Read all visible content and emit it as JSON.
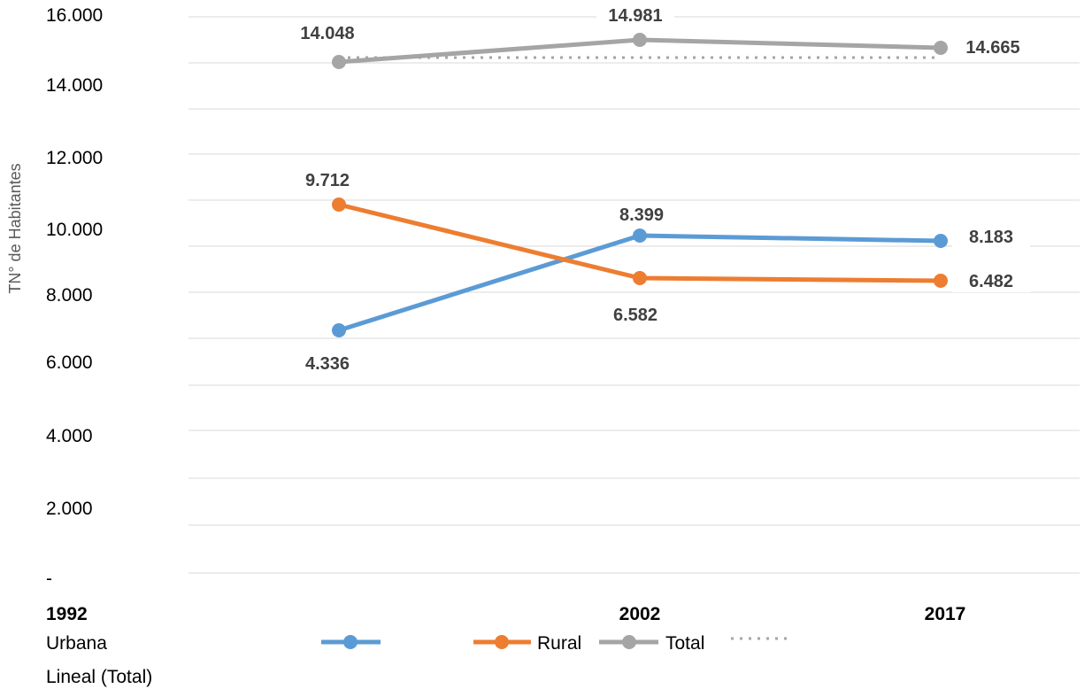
{
  "chart_data": {
    "type": "line",
    "ylabel": "TN° de Habitantes",
    "y_tick_labels": [
      "-",
      "2.000",
      "4.000",
      "6.000",
      "8.000",
      "10.000",
      "12.000",
      "14.000",
      "16.000"
    ],
    "categories": [
      "1992",
      "2002",
      "2017"
    ],
    "grid": true,
    "legend_position": "bottom",
    "series": [
      {
        "name": "Urbana",
        "values": [
          4336,
          8399,
          8183
        ],
        "labels": [
          "4.336",
          "8.399",
          "8.183"
        ],
        "color": "#5B9BD5"
      },
      {
        "name": "Rural",
        "values": [
          9712,
          6582,
          6482
        ],
        "labels": [
          "9.712",
          "6.582",
          "6.482"
        ],
        "color": "#ED7D31"
      },
      {
        "name": "Total",
        "values": [
          14048,
          14981,
          14665
        ],
        "labels": [
          "14.048",
          "14.981",
          "14.665"
        ],
        "color": "#A5A5A5"
      }
    ],
    "trendline": {
      "name": "Lineal (Total)",
      "of_series": "Total",
      "style": "dotted",
      "color": "#A5A5A5"
    }
  }
}
